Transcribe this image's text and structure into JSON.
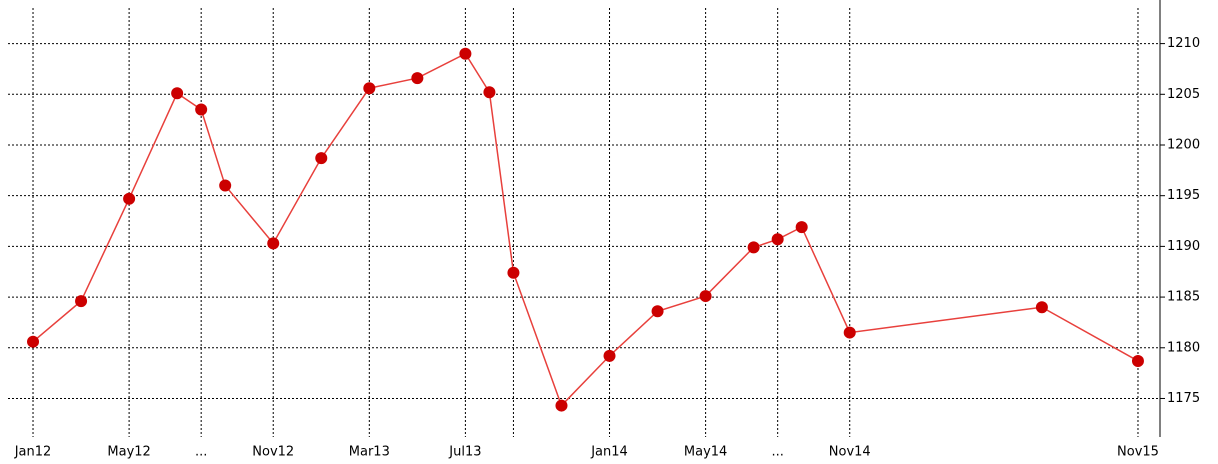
{
  "chart_data": {
    "type": "line",
    "x": [
      "2012-01",
      "2012-03",
      "2012-05",
      "2012-07",
      "2012-08",
      "2012-09",
      "2012-11",
      "2013-01",
      "2013-03",
      "2013-05",
      "2013-07",
      "2013-08",
      "2013-09",
      "2013-11",
      "2014-01",
      "2014-03",
      "2014-05",
      "2014-07",
      "2014-08",
      "2014-09",
      "2014-11",
      "2015-07",
      "2015-11"
    ],
    "series": [
      {
        "color": "#cc0000",
        "values": [
          1180.6,
          1184.6,
          1194.7,
          1205.1,
          1203.5,
          1196.0,
          1190.3,
          1198.7,
          1205.6,
          1206.6,
          1209.0,
          1205.2,
          1187.4,
          1174.3,
          1179.2,
          1183.6,
          1185.1,
          1189.9,
          1190.7,
          1191.9,
          1181.5,
          1184.0,
          1178.7
        ]
      }
    ],
    "xlim": [
      "2011-12",
      "2015-12"
    ],
    "xticks": [
      {
        "value": "2012-01",
        "label": "Jan12"
      },
      {
        "value": "2012-05",
        "label": "May12"
      },
      {
        "value": "2012-08",
        "label": "..."
      },
      {
        "value": "2012-11",
        "label": "Nov12"
      },
      {
        "value": "2013-03",
        "label": "Mar13"
      },
      {
        "value": "2013-07",
        "label": "Jul13"
      },
      {
        "value": "2013-09",
        "label": null
      },
      {
        "value": "2014-01",
        "label": "Jan14"
      },
      {
        "value": "2014-05",
        "label": "May14"
      },
      {
        "value": "2014-08",
        "label": "..."
      },
      {
        "value": "2014-11",
        "label": "Nov14"
      },
      {
        "value": "2015-11",
        "label": "Nov15"
      }
    ],
    "ylim": [
      1171.2,
      1214.3
    ],
    "yticks": [
      1175,
      1180,
      1185,
      1190,
      1195,
      1200,
      1205,
      1210
    ],
    "grid": true
  }
}
